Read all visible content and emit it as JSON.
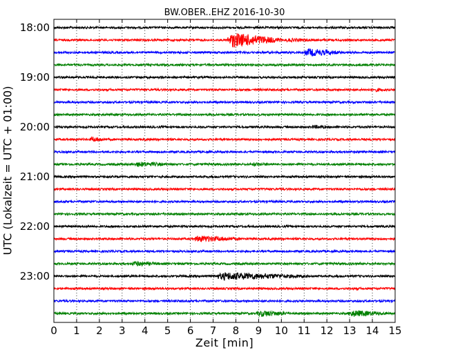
{
  "chart_data": {
    "type": "line",
    "title": "BW.OBER..EHZ 2016-10-30",
    "xlabel": "Zeit  [min]",
    "ylabel": "UTC (Lokalzeit = UTC + 01:00)",
    "xlim": [
      0,
      15
    ],
    "x_ticks": [
      "0",
      "1",
      "2",
      "3",
      "4",
      "5",
      "6",
      "7",
      "8",
      "9",
      "10",
      "11",
      "12",
      "13",
      "14",
      "15"
    ],
    "y_tick_labels": [
      "18:00",
      "19:00",
      "20:00",
      "21:00",
      "22:00",
      "23:00"
    ],
    "grid": "x",
    "row_minutes": 15,
    "colors": [
      "#000000",
      "#ff0000",
      "#0000ff",
      "#008000"
    ],
    "rows": [
      {
        "time": "18:00",
        "color": "#000000",
        "bursts": []
      },
      {
        "time": "18:15",
        "color": "#ff0000",
        "bursts": [
          [
            7.5,
            10.0,
            11
          ],
          [
            10.0,
            12.0,
            3
          ]
        ]
      },
      {
        "time": "18:30",
        "color": "#0000ff",
        "bursts": [
          [
            10.9,
            12.8,
            6
          ]
        ]
      },
      {
        "time": "18:45",
        "color": "#008000",
        "bursts": [
          [
            9.5,
            10.5,
            2
          ]
        ]
      },
      {
        "time": "19:00",
        "color": "#000000",
        "bursts": [
          [
            0.6,
            1.0,
            2
          ]
        ]
      },
      {
        "time": "19:15",
        "color": "#ff0000",
        "bursts": [
          [
            12.2,
            12.6,
            2
          ],
          [
            14.0,
            15.0,
            3
          ]
        ]
      },
      {
        "time": "19:30",
        "color": "#0000ff",
        "bursts": [
          [
            0.7,
            1.2,
            2
          ]
        ]
      },
      {
        "time": "19:45",
        "color": "#008000",
        "bursts": []
      },
      {
        "time": "20:00",
        "color": "#000000",
        "bursts": [
          [
            3.5,
            3.9,
            2
          ],
          [
            11.2,
            12.6,
            3
          ]
        ]
      },
      {
        "time": "20:15",
        "color": "#ff0000",
        "bursts": [
          [
            1.5,
            2.6,
            4
          ]
        ]
      },
      {
        "time": "20:30",
        "color": "#0000ff",
        "bursts": [
          [
            13.2,
            14.0,
            2
          ]
        ]
      },
      {
        "time": "20:45",
        "color": "#008000",
        "bursts": [
          [
            3.4,
            5.5,
            4
          ],
          [
            8.6,
            10.0,
            3
          ]
        ]
      },
      {
        "time": "21:00",
        "color": "#000000",
        "bursts": []
      },
      {
        "time": "21:15",
        "color": "#ff0000",
        "bursts": []
      },
      {
        "time": "21:30",
        "color": "#0000ff",
        "bursts": []
      },
      {
        "time": "21:45",
        "color": "#008000",
        "bursts": []
      },
      {
        "time": "22:00",
        "color": "#000000",
        "bursts": []
      },
      {
        "time": "22:15",
        "color": "#ff0000",
        "bursts": [
          [
            6.0,
            8.6,
            5
          ]
        ]
      },
      {
        "time": "22:30",
        "color": "#0000ff",
        "bursts": []
      },
      {
        "time": "22:45",
        "color": "#008000",
        "bursts": [
          [
            0.6,
            1.2,
            2
          ],
          [
            3.3,
            5.0,
            4
          ]
        ]
      },
      {
        "time": "23:00",
        "color": "#000000",
        "bursts": [
          [
            5.8,
            6.6,
            2
          ],
          [
            6.8,
            11.5,
            6
          ]
        ]
      },
      {
        "time": "23:15",
        "color": "#ff0000",
        "bursts": [
          [
            13.0,
            14.2,
            2
          ]
        ]
      },
      {
        "time": "23:30",
        "color": "#0000ff",
        "bursts": []
      },
      {
        "time": "23:45",
        "color": "#008000",
        "bursts": [
          [
            8.8,
            10.6,
            5
          ],
          [
            12.8,
            15.0,
            5
          ]
        ]
      }
    ]
  }
}
